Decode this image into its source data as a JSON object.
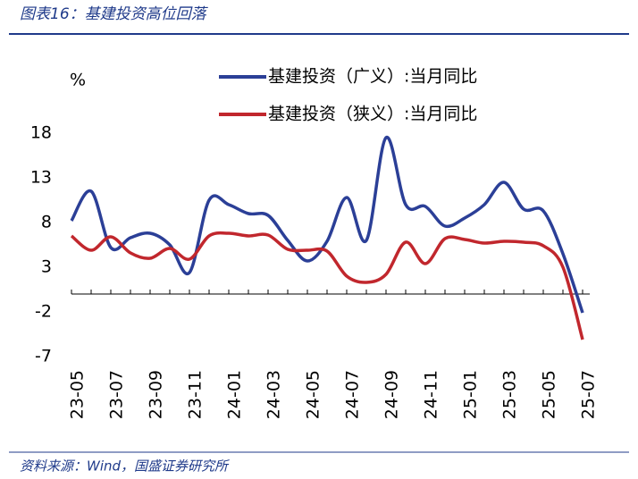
{
  "title": "图表16：基建投资高位回落",
  "source": "资料来源：Wind，国盛证券研究所",
  "chart_data": {
    "type": "line",
    "y_label": "%",
    "categories": [
      "23-05",
      null,
      "23-07",
      null,
      "23-09",
      null,
      "23-11",
      null,
      "24-01",
      null,
      "24-03",
      null,
      "24-05",
      null,
      "24-07",
      null,
      "24-09",
      null,
      "24-11",
      null,
      "25-01",
      null,
      "25-03",
      null,
      "25-05",
      null,
      "25-07"
    ],
    "series": [
      {
        "name": "基建投资（广义）:当月同比",
        "color": "#2b3f97",
        "values": [
          8.2,
          11.5,
          5.2,
          6.3,
          6.8,
          5.5,
          2.4,
          10.5,
          10.0,
          9.0,
          8.8,
          6.0,
          3.7,
          5.9,
          10.8,
          6.0,
          17.5,
          10.0,
          9.8,
          7.6,
          8.5,
          10.0,
          12.5,
          9.5,
          9.3,
          4.5,
          -2.1
        ]
      },
      {
        "name": "基建投资（狭义）:当月同比",
        "color": "#c1272d",
        "values": [
          6.5,
          4.9,
          6.4,
          4.6,
          4.0,
          5.1,
          3.9,
          6.5,
          6.8,
          6.5,
          6.6,
          5.0,
          4.9,
          4.8,
          2.0,
          1.3,
          2.2,
          5.8,
          3.4,
          6.2,
          6.1,
          5.7,
          5.9,
          5.8,
          5.4,
          3.0,
          -5.1
        ]
      }
    ],
    "ylim": [
      -7,
      18
    ],
    "yticks": [
      18,
      13,
      8,
      3,
      -2,
      -7
    ]
  }
}
